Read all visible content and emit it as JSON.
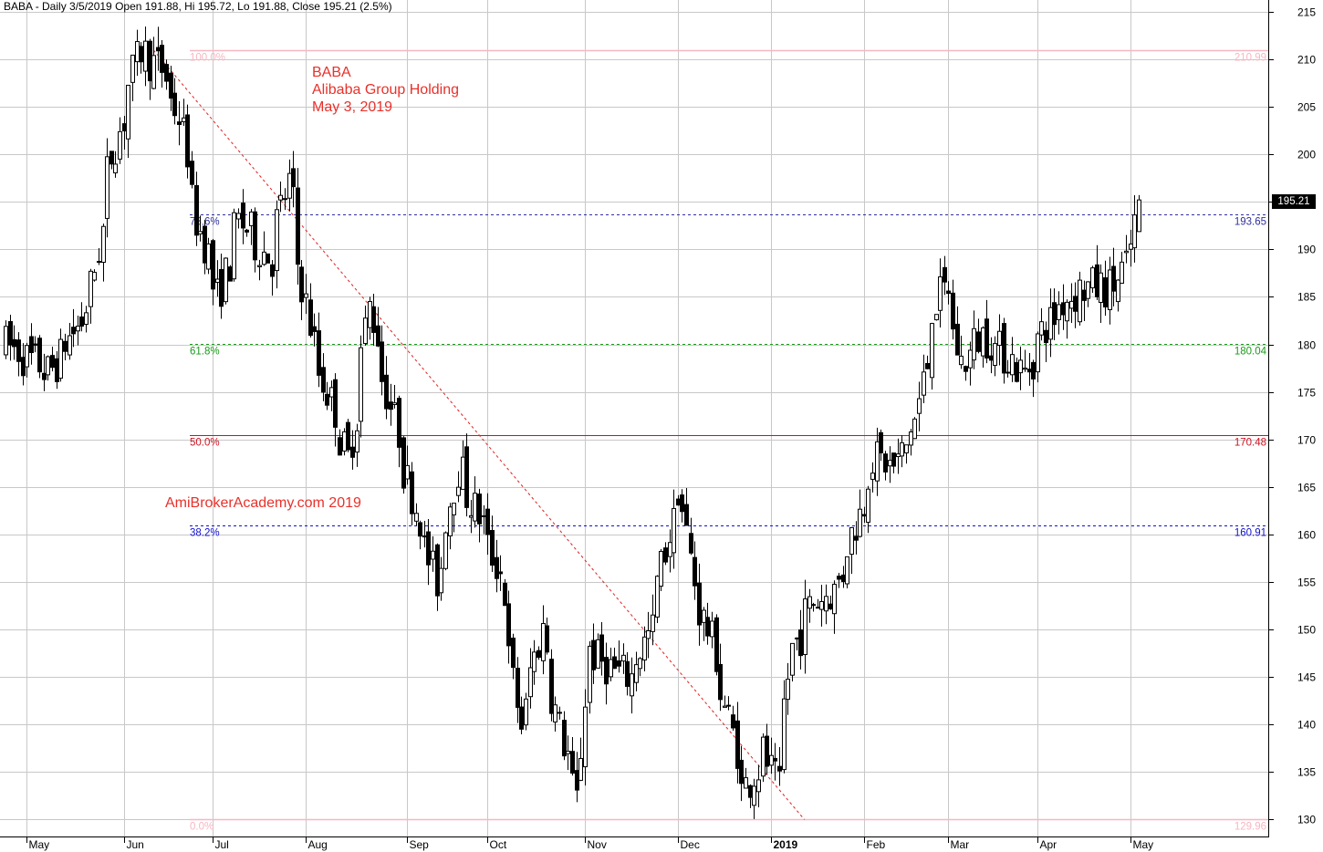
{
  "header": {
    "text": "BABA - Daily 3/5/2019 Open 191.88, Hi 195.72, Lo 191.88, Close 195.21 (2.5%)"
  },
  "annotation": {
    "symbol": "BABA",
    "name": "Alibaba Group Holding",
    "date": "May 3, 2019",
    "watermark": "AmiBrokerAcademy.com  2019"
  },
  "last_price_label": "195.21",
  "colors": {
    "grid": "#c8c8c8",
    "up_candle": "#ffffff",
    "down_candle": "#000000",
    "level_100_0": "#f7b6c2",
    "level_78_6": "#3030a0",
    "level_61_8": "#1a9a1a",
    "level_50_0": "#d01020",
    "level_38_2": "#1010d0",
    "trendline": "#e02020",
    "annotation": "#e8312a"
  },
  "chart_data": {
    "type": "candlestick",
    "symbol": "BABA",
    "ylim": [
      128,
      217
    ],
    "y_ticks": [
      130,
      135,
      140,
      145,
      150,
      155,
      160,
      165,
      170,
      175,
      180,
      185,
      190,
      195,
      200,
      205,
      210,
      215
    ],
    "x_axis_labels": [
      "May",
      "Jun",
      "Jul",
      "Aug",
      "Sep",
      "Oct",
      "Nov",
      "Dec",
      "2019",
      "Feb",
      "Mar",
      "Apr",
      "May"
    ],
    "fib_levels": [
      {
        "label": "100.0%",
        "value": 210.99
      },
      {
        "label": "78.6%",
        "value": 193.65
      },
      {
        "label": "61.8%",
        "value": 180.04
      },
      {
        "label": "50.0%",
        "value": 170.48
      },
      {
        "label": "38.2%",
        "value": 160.91
      },
      {
        "label": "0.0%",
        "value": 129.96
      }
    ],
    "trendline": {
      "from": {
        "date": "2018-06-12",
        "value": 210.99
      },
      "to": {
        "date": "2018-12-26",
        "value": 129.96
      }
    },
    "waypoints": [
      [
        "2018-04-24",
        180
      ],
      [
        "2018-05-08",
        177
      ],
      [
        "2018-05-21",
        184
      ],
      [
        "2018-05-29",
        200
      ],
      [
        "2018-06-07",
        211
      ],
      [
        "2018-06-14",
        209
      ],
      [
        "2018-06-20",
        204
      ],
      [
        "2018-06-26",
        193
      ],
      [
        "2018-07-03",
        185
      ],
      [
        "2018-07-10",
        193
      ],
      [
        "2018-07-20",
        189
      ],
      [
        "2018-07-26",
        197
      ],
      [
        "2018-08-03",
        180
      ],
      [
        "2018-08-15",
        168
      ],
      [
        "2018-08-22",
        184
      ],
      [
        "2018-08-30",
        172
      ],
      [
        "2018-09-06",
        163
      ],
      [
        "2018-09-13",
        155
      ],
      [
        "2018-09-20",
        167
      ],
      [
        "2018-09-27",
        162
      ],
      [
        "2018-10-04",
        156
      ],
      [
        "2018-10-11",
        140
      ],
      [
        "2018-10-18",
        150
      ],
      [
        "2018-10-25",
        138
      ],
      [
        "2018-10-30",
        132
      ],
      [
        "2018-11-02",
        148
      ],
      [
        "2018-11-09",
        146
      ],
      [
        "2018-11-16",
        145
      ],
      [
        "2018-11-23",
        150
      ],
      [
        "2018-11-29",
        160
      ],
      [
        "2018-12-03",
        165
      ],
      [
        "2018-12-07",
        155
      ],
      [
        "2018-12-12",
        150
      ],
      [
        "2018-12-18",
        142
      ],
      [
        "2018-12-24",
        133
      ],
      [
        "2018-12-31",
        137
      ],
      [
        "2019-01-04",
        133
      ],
      [
        "2019-01-09",
        148
      ],
      [
        "2019-01-16",
        153
      ],
      [
        "2019-01-23",
        154
      ],
      [
        "2019-01-29",
        160
      ],
      [
        "2019-02-05",
        168
      ],
      [
        "2019-02-12",
        167
      ],
      [
        "2019-02-19",
        172
      ],
      [
        "2019-02-25",
        184
      ],
      [
        "2019-03-01",
        186
      ],
      [
        "2019-03-06",
        178
      ],
      [
        "2019-03-13",
        181
      ],
      [
        "2019-03-20",
        179
      ],
      [
        "2019-03-27",
        177
      ],
      [
        "2019-04-03",
        182
      ],
      [
        "2019-04-10",
        185
      ],
      [
        "2019-04-17",
        186
      ],
      [
        "2019-04-24",
        186
      ],
      [
        "2019-04-30",
        188
      ],
      [
        "2019-05-03",
        195.21
      ]
    ],
    "last_bar": {
      "date": "2019-05-03",
      "open": 191.88,
      "high": 195.72,
      "low": 191.88,
      "close": 195.21
    }
  }
}
